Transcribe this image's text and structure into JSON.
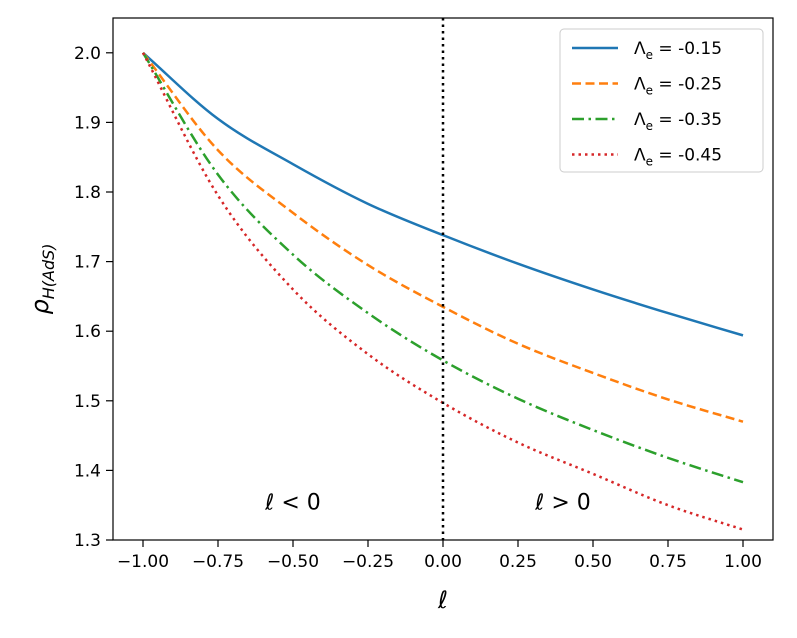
{
  "chart_data": {
    "type": "line",
    "xlabel": "ℓ",
    "ylabel_main": "ρ",
    "ylabel_sub": "H(AdS)",
    "xlim": [
      -1.1,
      1.1
    ],
    "ylim": [
      1.3,
      2.05
    ],
    "xticks": [
      -1.0,
      -0.75,
      -0.5,
      -0.25,
      0.0,
      0.25,
      0.5,
      0.75,
      1.0
    ],
    "xtick_labels": [
      "−1.00",
      "−0.75",
      "−0.50",
      "−0.25",
      "0.00",
      "0.25",
      "0.50",
      "0.75",
      "1.00"
    ],
    "yticks": [
      1.3,
      1.4,
      1.5,
      1.6,
      1.7,
      1.8,
      1.9,
      2.0
    ],
    "ytick_labels": [
      "1.3",
      "1.4",
      "1.5",
      "1.6",
      "1.7",
      "1.8",
      "1.9",
      "2.0"
    ],
    "vline_x": 0.0,
    "annotations": [
      {
        "text": "ℓ < 0",
        "x": -0.5,
        "y": 1.355
      },
      {
        "text": "ℓ > 0",
        "x": 0.4,
        "y": 1.355
      }
    ],
    "legend_position": "top-right",
    "x": [
      -1.0,
      -0.75,
      -0.5,
      -0.25,
      0.0,
      0.25,
      0.5,
      0.75,
      1.0
    ],
    "series": [
      {
        "name": "Λe = -0.15",
        "label_main": "Λ",
        "label_sub": "e",
        "label_value": " = -0.15",
        "color": "#1f77b4",
        "style": "solid",
        "values": [
          2.0,
          1.905,
          1.84,
          1.783,
          1.738,
          1.697,
          1.66,
          1.626,
          1.594
        ]
      },
      {
        "name": "Λe = -0.25",
        "label_main": "Λ",
        "label_sub": "e",
        "label_value": " = -0.25",
        "color": "#ff7f0e",
        "style": "dashed",
        "values": [
          2.0,
          1.86,
          1.77,
          1.695,
          1.635,
          1.582,
          1.54,
          1.502,
          1.47
        ]
      },
      {
        "name": "Λe = -0.35",
        "label_main": "Λ",
        "label_sub": "e",
        "label_value": " = -0.35",
        "color": "#2ca02c",
        "style": "dashdot",
        "values": [
          2.0,
          1.825,
          1.71,
          1.626,
          1.558,
          1.503,
          1.458,
          1.418,
          1.383
        ]
      },
      {
        "name": "Λe = -0.45",
        "label_main": "Λ",
        "label_sub": "e",
        "label_value": " = -0.45",
        "color": "#d62728",
        "style": "dotted",
        "values": [
          2.0,
          1.795,
          1.66,
          1.567,
          1.497,
          1.44,
          1.395,
          1.35,
          1.315
        ]
      }
    ]
  }
}
